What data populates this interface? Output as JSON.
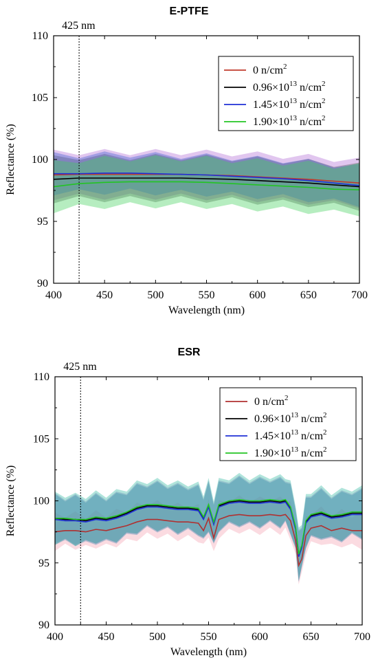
{
  "chart_data": [
    {
      "type": "line",
      "title": "E-PTFE",
      "xlabel": "Wavelength (nm)",
      "ylabel": "Reflectance (%)",
      "xlim": [
        400,
        700
      ],
      "ylim": [
        90,
        110
      ],
      "xticks": [
        400,
        450,
        500,
        550,
        600,
        650,
        700
      ],
      "yticks": [
        90,
        95,
        100,
        105,
        110
      ],
      "annotation": {
        "text": "425 nm",
        "x": 425
      },
      "legend_position": "top-right",
      "x": [
        400,
        425,
        450,
        475,
        500,
        525,
        550,
        575,
        600,
        625,
        650,
        675,
        700
      ],
      "series": [
        {
          "name": "0 n/cm2",
          "legend_base": "0 n/cm",
          "legend_sup": "2",
          "color": "#c0392b",
          "values": [
            98.75,
            98.8,
            98.8,
            98.8,
            98.8,
            98.8,
            98.75,
            98.7,
            98.6,
            98.5,
            98.4,
            98.25,
            98.1
          ],
          "band": [
            1.8,
            1.8,
            1.8,
            1.8,
            1.8,
            1.8,
            1.8,
            1.8,
            1.8,
            1.8,
            1.8,
            1.8,
            1.8
          ],
          "band_color": "#b06ad6"
        },
        {
          "name": "0.96×1013 n/cm2",
          "legend_base": "0.96×10",
          "legend_sup": "13",
          "legend_tail": " n/cm",
          "legend_sup2": "2",
          "color": "#000000",
          "values": [
            98.4,
            98.5,
            98.5,
            98.5,
            98.5,
            98.5,
            98.45,
            98.4,
            98.3,
            98.2,
            98.1,
            97.95,
            97.8
          ],
          "band": [
            1.7,
            1.7,
            1.7,
            1.7,
            1.7,
            1.7,
            1.7,
            1.7,
            1.7,
            1.7,
            1.7,
            1.7,
            1.7
          ],
          "band_color": "#555555"
        },
        {
          "name": "1.45×1013 n/cm2",
          "legend_base": "1.45×10",
          "legend_sup": "13",
          "legend_tail": " n/cm",
          "legend_sup2": "2",
          "color": "#1f2fd6",
          "values": [
            98.85,
            98.85,
            98.9,
            98.9,
            98.85,
            98.8,
            98.75,
            98.65,
            98.55,
            98.45,
            98.3,
            98.1,
            97.9
          ],
          "band": [
            1.5,
            1.5,
            1.5,
            1.5,
            1.5,
            1.5,
            1.5,
            1.5,
            1.5,
            1.5,
            1.5,
            1.5,
            1.5
          ],
          "band_color": "#3f5fd0"
        },
        {
          "name": "1.90×1013 n/cm2",
          "legend_base": "1.90×10",
          "legend_sup": "13",
          "legend_tail": " n/cm",
          "legend_sup2": "2",
          "color": "#22c422",
          "values": [
            97.8,
            98.05,
            98.15,
            98.2,
            98.2,
            98.2,
            98.15,
            98.05,
            97.95,
            97.85,
            97.75,
            97.6,
            97.55
          ],
          "band": [
            1.9,
            1.9,
            1.9,
            1.9,
            1.9,
            1.9,
            1.9,
            1.9,
            1.9,
            1.9,
            1.9,
            1.9,
            1.9
          ],
          "band_color": "#3fcf5a"
        }
      ]
    },
    {
      "type": "line",
      "title": "ESR",
      "xlabel": "Wavelength (nm)",
      "ylabel": "Reflectance (%)",
      "xlim": [
        400,
        700
      ],
      "ylim": [
        90,
        110
      ],
      "xticks": [
        400,
        450,
        500,
        550,
        600,
        650,
        700
      ],
      "yticks": [
        90,
        95,
        100,
        105,
        110
      ],
      "annotation": {
        "text": "425 nm",
        "x": 425
      },
      "legend_position": "top-right",
      "x": [
        400,
        410,
        420,
        430,
        440,
        450,
        460,
        470,
        480,
        490,
        500,
        510,
        520,
        530,
        540,
        545,
        550,
        555,
        560,
        570,
        580,
        590,
        600,
        610,
        620,
        625,
        630,
        635,
        638,
        641,
        645,
        650,
        660,
        670,
        680,
        690,
        700
      ],
      "series": [
        {
          "name": "0 n/cm2",
          "legend_base": "0 n/cm",
          "legend_sup": "2",
          "color": "#b03030",
          "values": [
            97.5,
            97.6,
            97.6,
            97.5,
            97.7,
            97.6,
            97.8,
            98.0,
            98.3,
            98.5,
            98.5,
            98.4,
            98.3,
            98.3,
            98.2,
            97.6,
            98.6,
            97.0,
            98.5,
            98.8,
            98.9,
            98.8,
            98.8,
            98.9,
            98.8,
            98.9,
            98.4,
            96.8,
            94.8,
            95.3,
            97.2,
            97.8,
            98.0,
            97.6,
            97.8,
            97.6,
            97.6
          ],
          "band": [
            1.3,
            1.3,
            1.3,
            1.3,
            1.3,
            1.3,
            1.3,
            1.3,
            1.3,
            1.3,
            1.3,
            1.3,
            1.3,
            1.3,
            1.3,
            1.3,
            1.3,
            1.3,
            1.3,
            1.3,
            1.3,
            1.3,
            1.3,
            1.3,
            1.3,
            1.3,
            1.3,
            1.3,
            1.3,
            1.3,
            1.3,
            1.3,
            1.3,
            1.3,
            1.3,
            1.3,
            1.3
          ],
          "band_color": "#f4a0b0"
        },
        {
          "name": "0.96×1013 n/cm2",
          "legend_base": "0.96×10",
          "legend_sup": "13",
          "legend_tail": " n/cm",
          "legend_sup2": "2",
          "color": "#000000",
          "values": [
            98.6,
            98.5,
            98.5,
            98.4,
            98.6,
            98.5,
            98.7,
            99.0,
            99.4,
            99.6,
            99.6,
            99.5,
            99.4,
            99.4,
            99.3,
            98.6,
            99.6,
            98.2,
            99.6,
            99.9,
            100.0,
            99.9,
            99.9,
            100.0,
            99.9,
            100.0,
            99.4,
            97.8,
            95.6,
            96.3,
            98.3,
            98.8,
            99.0,
            98.7,
            98.8,
            99.0,
            99.0
          ],
          "band": [
            1.8,
            1.8,
            1.8,
            1.8,
            1.8,
            1.8,
            1.8,
            1.8,
            1.8,
            1.8,
            1.8,
            1.8,
            1.8,
            1.8,
            1.8,
            1.8,
            1.8,
            1.8,
            1.8,
            1.8,
            1.8,
            1.8,
            1.8,
            1.8,
            1.8,
            1.8,
            1.8,
            1.8,
            1.8,
            1.8,
            1.8,
            1.8,
            1.8,
            1.8,
            1.8,
            1.8,
            1.8
          ],
          "band_color": "#8a6fc0"
        },
        {
          "name": "1.45×1013 n/cm2",
          "legend_base": "1.45×10",
          "legend_sup": "13",
          "legend_tail": " n/cm",
          "legend_sup2": "2",
          "color": "#1f2fd6",
          "values": [
            98.5,
            98.4,
            98.4,
            98.3,
            98.5,
            98.4,
            98.6,
            98.9,
            99.3,
            99.5,
            99.5,
            99.4,
            99.3,
            99.3,
            99.2,
            98.5,
            99.5,
            98.1,
            99.5,
            99.8,
            99.9,
            99.8,
            99.8,
            99.9,
            99.8,
            99.9,
            99.3,
            97.7,
            95.5,
            96.2,
            98.2,
            98.7,
            98.9,
            98.6,
            98.7,
            98.9,
            98.9
          ],
          "band": [
            1.8,
            1.8,
            1.8,
            1.8,
            1.8,
            1.8,
            1.8,
            1.8,
            1.8,
            1.8,
            1.8,
            1.8,
            1.8,
            1.8,
            1.8,
            1.8,
            1.8,
            1.8,
            1.8,
            1.8,
            1.8,
            1.8,
            1.8,
            1.8,
            1.8,
            1.8,
            1.8,
            1.8,
            1.8,
            1.8,
            1.8,
            1.8,
            1.8,
            1.8,
            1.8,
            1.8,
            1.8
          ],
          "band_color": "#3f7fb0"
        },
        {
          "name": "1.90×1013 n/cm2",
          "legend_base": "1.90×10",
          "legend_sup": "13",
          "legend_tail": " n/cm",
          "legend_sup2": "2",
          "color": "#22c422",
          "values": [
            98.6,
            98.6,
            98.5,
            98.5,
            98.7,
            98.6,
            98.8,
            99.1,
            99.5,
            99.7,
            99.7,
            99.6,
            99.5,
            99.5,
            99.4,
            98.7,
            99.7,
            98.3,
            99.7,
            100.0,
            100.1,
            100.0,
            100.0,
            100.1,
            100.0,
            100.1,
            99.5,
            97.9,
            95.7,
            96.4,
            98.4,
            98.9,
            99.1,
            98.8,
            98.9,
            99.1,
            99.1
          ],
          "band": [
            1.9,
            1.9,
            1.9,
            1.9,
            1.9,
            1.9,
            1.9,
            1.9,
            1.9,
            1.9,
            1.9,
            1.9,
            1.9,
            1.9,
            1.9,
            1.9,
            1.9,
            1.9,
            1.9,
            1.9,
            1.9,
            1.9,
            1.9,
            1.9,
            1.9,
            1.9,
            1.9,
            1.9,
            1.9,
            1.9,
            1.9,
            1.9,
            1.9,
            1.9,
            1.9,
            1.9,
            1.9
          ],
          "band_color": "#2fb8a0"
        }
      ]
    }
  ]
}
